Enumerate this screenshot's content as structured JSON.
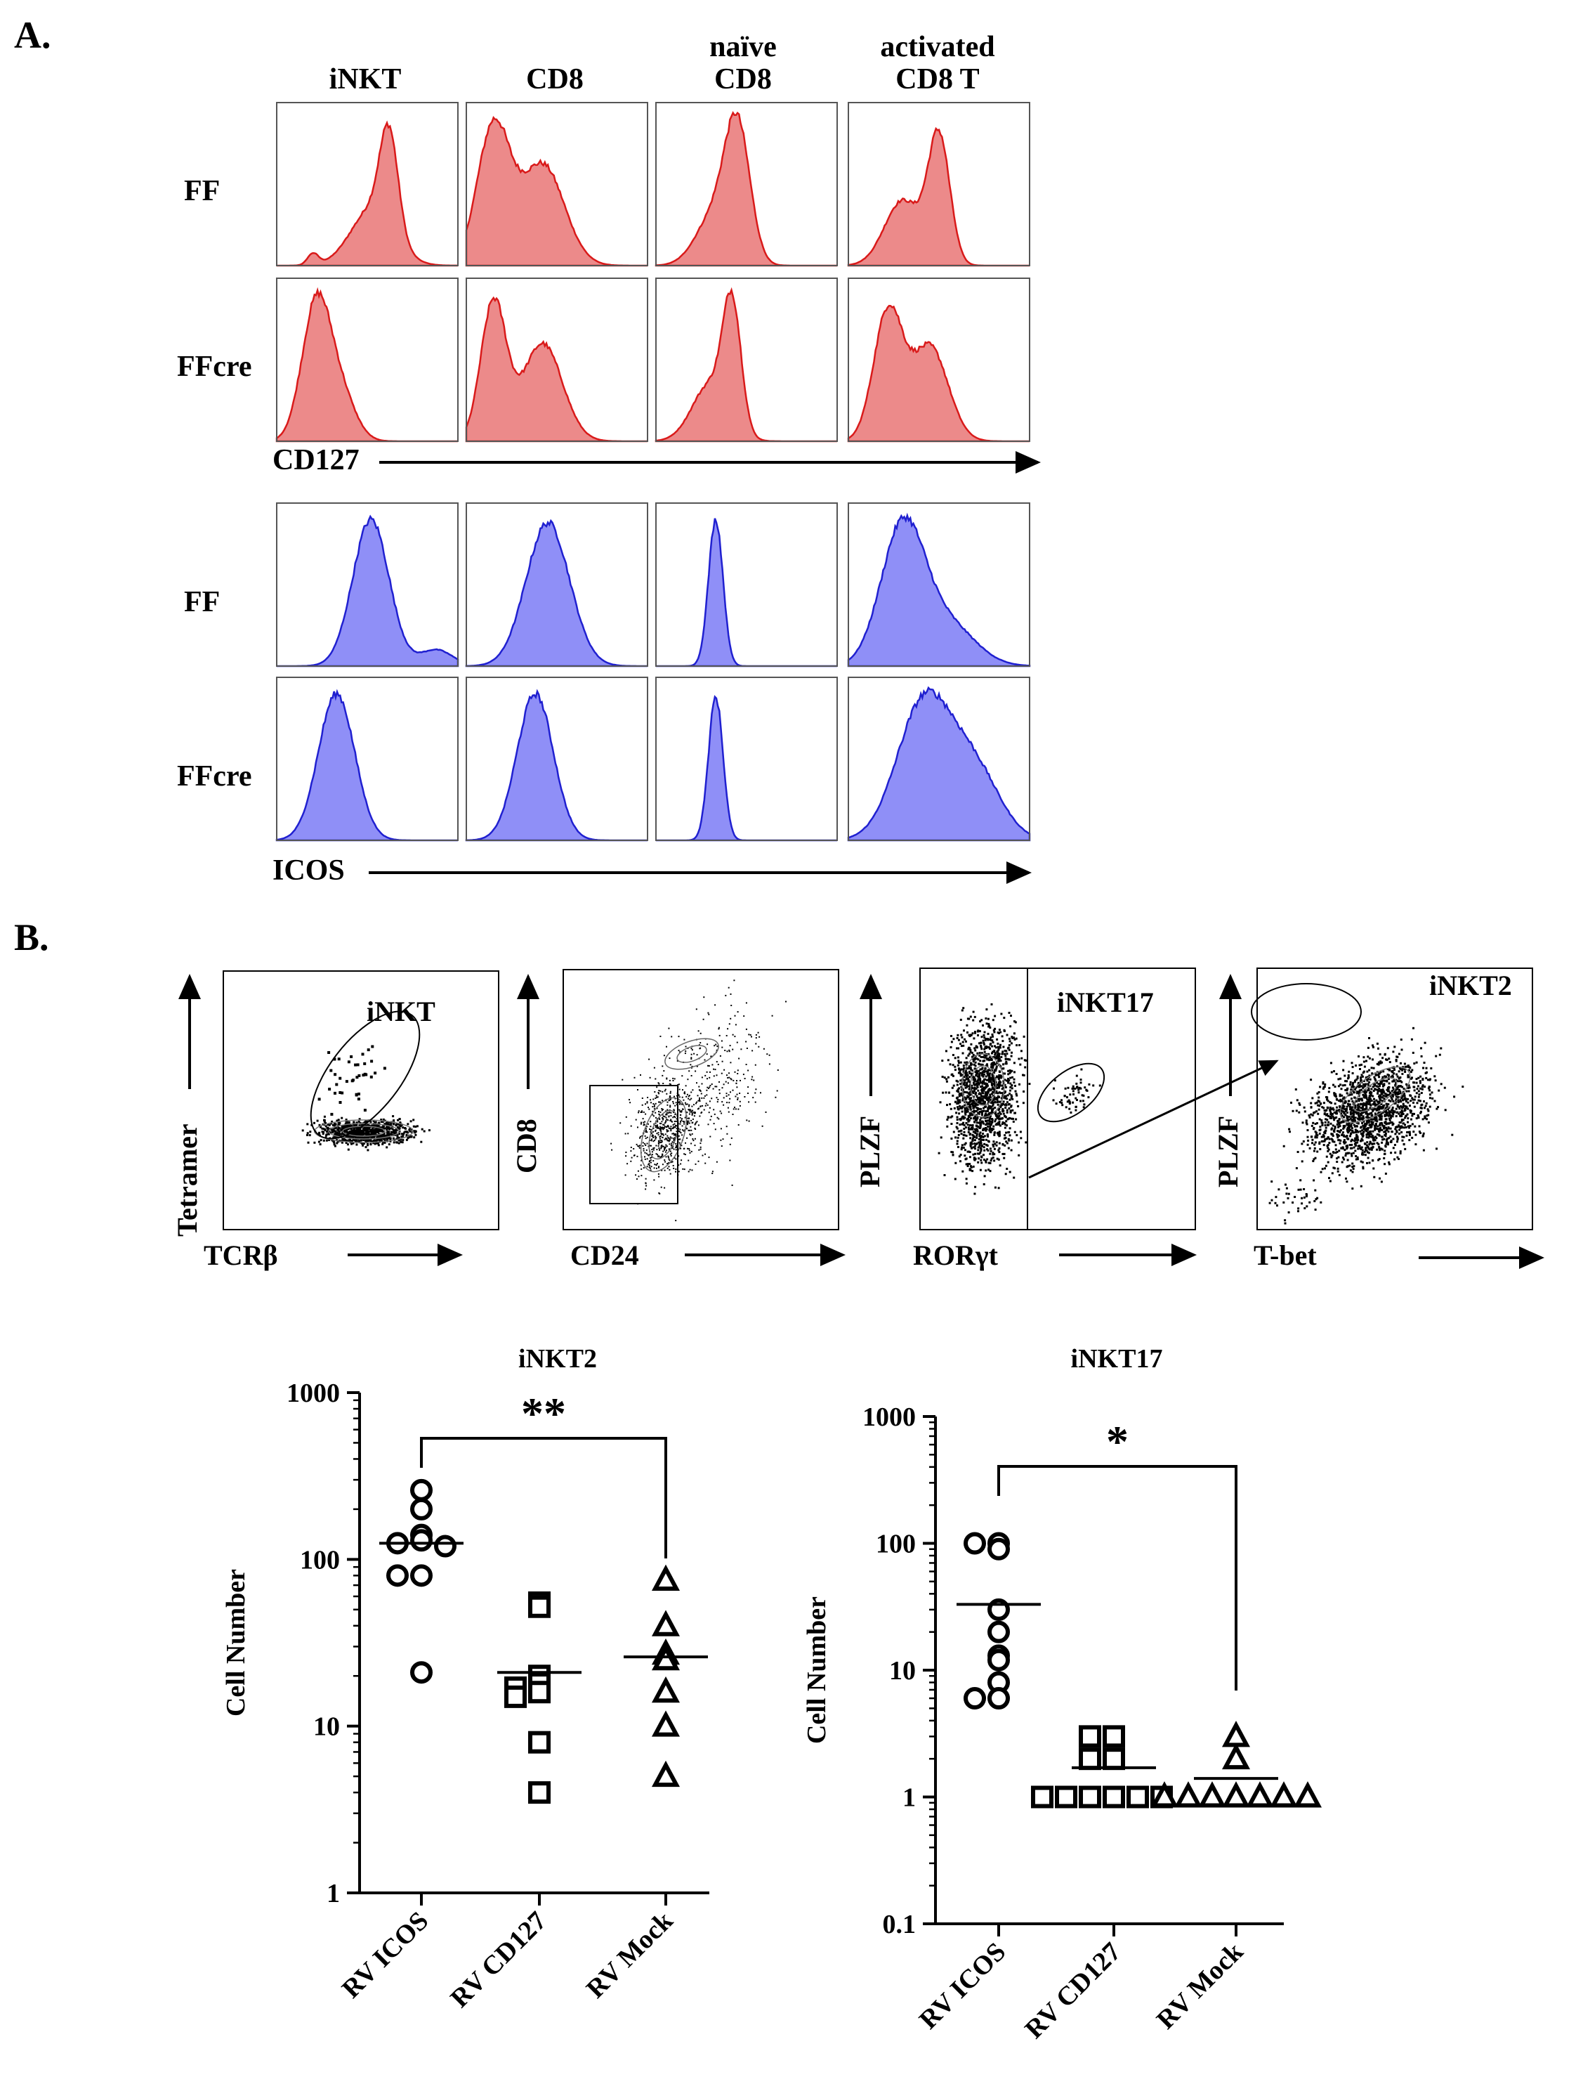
{
  "panel_a": {
    "letter": "A.",
    "columns": [
      {
        "line1": "",
        "line2": "iNKT"
      },
      {
        "line1": "",
        "line2": "CD8"
      },
      {
        "line1": "naïve",
        "line2": "CD8"
      },
      {
        "line1": "activated",
        "line2": "CD8 T"
      }
    ],
    "rows": [
      "FF",
      "FFcre",
      "FF",
      "FFcre"
    ],
    "markers": [
      "CD127",
      "ICOS"
    ],
    "colors": {
      "red_fill": "#ec8a8a",
      "red_line": "#d91a1a",
      "blue_fill": "#8f8ff7",
      "blue_line": "#2020d0"
    }
  },
  "panel_b": {
    "letter": "B.",
    "dotplots": [
      {
        "xlabel": "TCRβ",
        "ylabel": "Tetramer",
        "gate": "iNKT"
      },
      {
        "xlabel": "CD24",
        "ylabel": "CD8",
        "gate": ""
      },
      {
        "xlabel": "RORγt",
        "ylabel": "PLZF",
        "gate": "iNKT17"
      },
      {
        "xlabel": "T-bet",
        "ylabel": "PLZF",
        "gate": "iNKT2"
      }
    ]
  },
  "chart_data": [
    {
      "type": "scatter",
      "title": "iNKT2",
      "ylabel": "Cell Number",
      "yscale": "log",
      "ylim": [
        1,
        1000
      ],
      "yticks": [
        "1",
        "10",
        "100",
        "1000"
      ],
      "categories": [
        "RV ICOS",
        "RV CD127",
        "RV Mock"
      ],
      "markers": [
        "circle",
        "square",
        "triangle"
      ],
      "series": [
        {
          "name": "RV ICOS",
          "values": [
            260,
            200,
            140,
            130,
            125,
            120,
            80,
            80,
            21
          ],
          "mean": 125
        },
        {
          "name": "RV CD127",
          "values": [
            55,
            52,
            20,
            18,
            17,
            16,
            15,
            8,
            4
          ],
          "mean": 21
        },
        {
          "name": "RV Mock",
          "values": [
            75,
            40,
            27,
            25,
            16,
            10,
            5
          ],
          "mean": 26
        }
      ],
      "significance": {
        "from": "RV ICOS",
        "to": "RV Mock",
        "label": "**"
      }
    },
    {
      "type": "scatter",
      "title": "iNKT17",
      "ylabel": "Cell Number",
      "yscale": "log",
      "ylim": [
        0.1,
        1000
      ],
      "yticks": [
        "0.1",
        "1",
        "10",
        "100",
        "1000"
      ],
      "categories": [
        "RV ICOS",
        "RV CD127",
        "RV Mock"
      ],
      "markers": [
        "circle",
        "square",
        "triangle"
      ],
      "series": [
        {
          "name": "RV ICOS",
          "values": [
            100,
            100,
            90,
            30,
            20,
            13,
            12,
            8,
            6,
            6
          ],
          "mean": 33
        },
        {
          "name": "RV CD127",
          "values": [
            3,
            3,
            2,
            2,
            1,
            1,
            1,
            1,
            1,
            1
          ],
          "mean": 1.7
        },
        {
          "name": "RV Mock",
          "values": [
            3,
            2,
            1,
            1,
            1,
            1,
            1,
            1,
            1
          ],
          "mean": 1.4
        }
      ],
      "significance": {
        "from": "RV ICOS",
        "to": "RV Mock",
        "label": "*"
      }
    }
  ]
}
